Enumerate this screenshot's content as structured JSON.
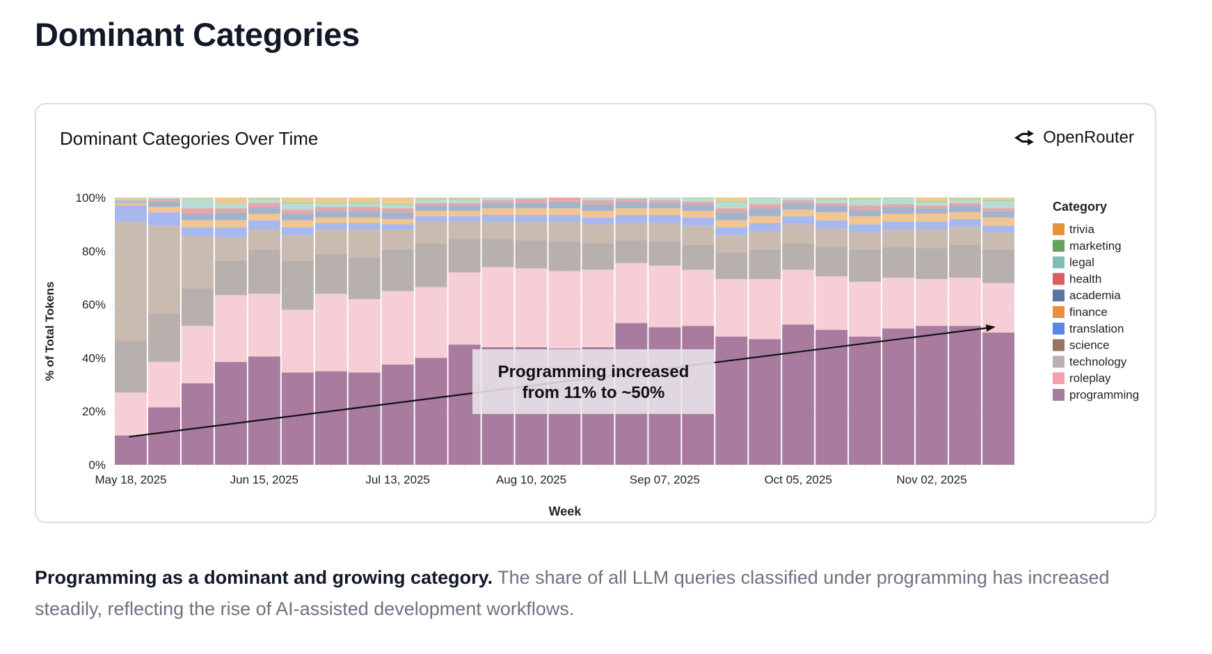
{
  "page": {
    "title": "Dominant Categories",
    "description_bold": "Programming as a dominant and growing category.",
    "description_rest": " The share of all LLM queries classified under programming has increased steadily, reflecting the rise of AI-assisted development workflows."
  },
  "card": {
    "title": "Dominant Categories Over Time",
    "brand_name": "OpenRouter",
    "brand_icon": "openrouter-logo-icon"
  },
  "chart_data": {
    "type": "bar",
    "stacked": true,
    "normalized": true,
    "title": "Dominant Categories Over Time",
    "xlabel": "Week",
    "ylabel": "% of Total Tokens",
    "ylim": [
      0,
      100
    ],
    "yticks": [
      "0%",
      "20%",
      "40%",
      "60%",
      "80%",
      "100%"
    ],
    "ytick_values": [
      0,
      20,
      40,
      60,
      80,
      100
    ],
    "xtick_labels": [
      {
        "label": "May 18, 2025",
        "index": 0
      },
      {
        "label": "Jun 15, 2025",
        "index": 4
      },
      {
        "label": "Jul 13, 2025",
        "index": 8
      },
      {
        "label": "Aug 10, 2025",
        "index": 12
      },
      {
        "label": "Sep 07, 2025",
        "index": 16
      },
      {
        "label": "Oct 05, 2025",
        "index": 20
      },
      {
        "label": "Nov 02, 2025",
        "index": 24
      }
    ],
    "grid": true,
    "legend": {
      "title": "Category",
      "placement": "right"
    },
    "categories": [
      "2025-05-18",
      "2025-05-25",
      "2025-06-01",
      "2025-06-08",
      "2025-06-15",
      "2025-06-22",
      "2025-06-29",
      "2025-07-06",
      "2025-07-13",
      "2025-07-20",
      "2025-07-27",
      "2025-08-03",
      "2025-08-10",
      "2025-08-17",
      "2025-08-24",
      "2025-08-31",
      "2025-09-07",
      "2025-09-14",
      "2025-09-21",
      "2025-09-28",
      "2025-10-05",
      "2025-10-12",
      "2025-10-19",
      "2025-10-26",
      "2025-11-02",
      "2025-11-09",
      "2025-11-16"
    ],
    "series": [
      {
        "name": "programming",
        "color": "#a87b9f",
        "values": [
          11,
          21.5,
          30.5,
          38.5,
          40.5,
          34.5,
          35,
          34.5,
          37.5,
          40,
          45,
          44,
          44,
          43.5,
          44,
          53,
          51.5,
          52,
          48,
          47,
          52.5,
          50.5,
          48,
          51,
          52,
          52,
          49.5
        ]
      },
      {
        "name": "roleplay",
        "color": "#f6ced5",
        "values": [
          16,
          17,
          21.5,
          25,
          23.5,
          23.5,
          29,
          27.5,
          27.5,
          26.5,
          27,
          30,
          29.5,
          29,
          29,
          22.5,
          23,
          21,
          21.5,
          22.5,
          20.5,
          20,
          20.5,
          19,
          17.5,
          18,
          18.5
        ]
      },
      {
        "name": "technology",
        "color": "#b8b0ad",
        "values": [
          19.5,
          18,
          14,
          13,
          16.5,
          18.5,
          15,
          15.5,
          15.5,
          16.5,
          12.5,
          10.5,
          10.5,
          11,
          10,
          8.5,
          9,
          9.5,
          10,
          11,
          10,
          11,
          12,
          11.5,
          11.5,
          12.5,
          12.5
        ]
      },
      {
        "name": "science",
        "color": "#c9bbb0",
        "values": [
          44.5,
          33,
          19.5,
          8.5,
          7.5,
          9.5,
          9,
          10.5,
          7.5,
          8,
          6.5,
          6.5,
          7,
          7.5,
          7,
          6.5,
          7,
          7,
          6.5,
          7,
          7,
          7,
          6.5,
          6.5,
          7,
          6.5,
          6.5
        ]
      },
      {
        "name": "translation",
        "color": "#a6b8ed",
        "values": [
          6,
          5,
          3.5,
          4,
          3.5,
          3,
          2.5,
          2.5,
          2,
          2,
          2,
          2.5,
          2.5,
          2.5,
          2.5,
          3,
          3,
          3,
          3,
          3,
          3,
          3,
          3,
          3,
          3,
          3,
          2.5
        ]
      },
      {
        "name": "finance",
        "color": "#f2c490",
        "values": [
          1,
          2,
          2.5,
          2.5,
          2.5,
          2.5,
          2,
          2,
          2,
          2,
          2,
          2.5,
          2.5,
          2.5,
          2.5,
          2.5,
          2.5,
          2.5,
          2.5,
          2.5,
          2.5,
          3,
          3,
          3,
          3,
          2.5,
          3
        ]
      },
      {
        "name": "academia",
        "color": "#a3b3cb",
        "values": [
          0.5,
          2,
          2.5,
          3,
          2.5,
          2.5,
          2.5,
          2.5,
          2.5,
          2,
          2,
          2,
          2,
          2.5,
          2.5,
          2.5,
          2,
          2.5,
          3,
          3,
          2.5,
          2.5,
          2.5,
          2.5,
          2,
          2.5,
          2.5
        ]
      },
      {
        "name": "health",
        "color": "#e7a7a6",
        "values": [
          0.5,
          1,
          2,
          1.5,
          1.5,
          1.5,
          1.5,
          1.5,
          1.5,
          1,
          1,
          1,
          1.5,
          1.5,
          1.5,
          1,
          1,
          1,
          1.5,
          1.5,
          1,
          1,
          1.5,
          1,
          1,
          1,
          1
        ]
      },
      {
        "name": "legal",
        "color": "#b8dcd3",
        "values": [
          0.5,
          0.3,
          3.5,
          1.5,
          1.3,
          2.3,
          1.2,
          1.3,
          1.2,
          1.2,
          1.2,
          1,
          1.2,
          1.2,
          1.2,
          0.8,
          1.2,
          1.2,
          2.2,
          2.2,
          1.2,
          1.2,
          2.2,
          2.2,
          1.2,
          1.2,
          2.7
        ]
      },
      {
        "name": "marketing",
        "color": "#a8d4a0",
        "values": [
          0.3,
          0.2,
          0.3,
          0.3,
          0.5,
          0.5,
          0.5,
          0.5,
          0.5,
          0.5,
          0.5,
          0.5,
          0.5,
          0.5,
          0.5,
          0.5,
          0.5,
          0.5,
          0.5,
          0.5,
          0.5,
          0.5,
          0.5,
          0.5,
          0.5,
          0.5,
          0.5
        ]
      },
      {
        "name": "trivia",
        "color": "#f0c78e",
        "values": [
          0.2,
          0.3,
          0.2,
          0.2,
          0.2,
          0.2,
          0.3,
          0.2,
          0.3,
          0.3,
          0.3,
          0.5,
          0.3,
          0.3,
          0.3,
          0.2,
          0.3,
          0.3,
          0.3,
          0.3,
          0.3,
          0.3,
          0.3,
          0.3,
          0.3,
          0.3,
          0.3
        ]
      }
    ],
    "legend_entries": [
      {
        "name": "trivia",
        "color": "#e8913f"
      },
      {
        "name": "marketing",
        "color": "#63a35c"
      },
      {
        "name": "legal",
        "color": "#7dbdb6"
      },
      {
        "name": "health",
        "color": "#d9605f"
      },
      {
        "name": "academia",
        "color": "#5677a4"
      },
      {
        "name": "finance",
        "color": "#ea8e3f"
      },
      {
        "name": "translation",
        "color": "#5b85e4"
      },
      {
        "name": "science",
        "color": "#927562"
      },
      {
        "name": "technology",
        "color": "#b9b1ad"
      },
      {
        "name": "roleplay",
        "color": "#f2a0aa"
      },
      {
        "name": "programming",
        "color": "#a57c9f"
      }
    ],
    "annotation": {
      "text_line1": "Programming increased",
      "text_line2": "from 11% to ~50%",
      "arrow_from": {
        "index": 0,
        "value": 11
      },
      "arrow_to": {
        "index": 26,
        "value": 50
      }
    }
  }
}
